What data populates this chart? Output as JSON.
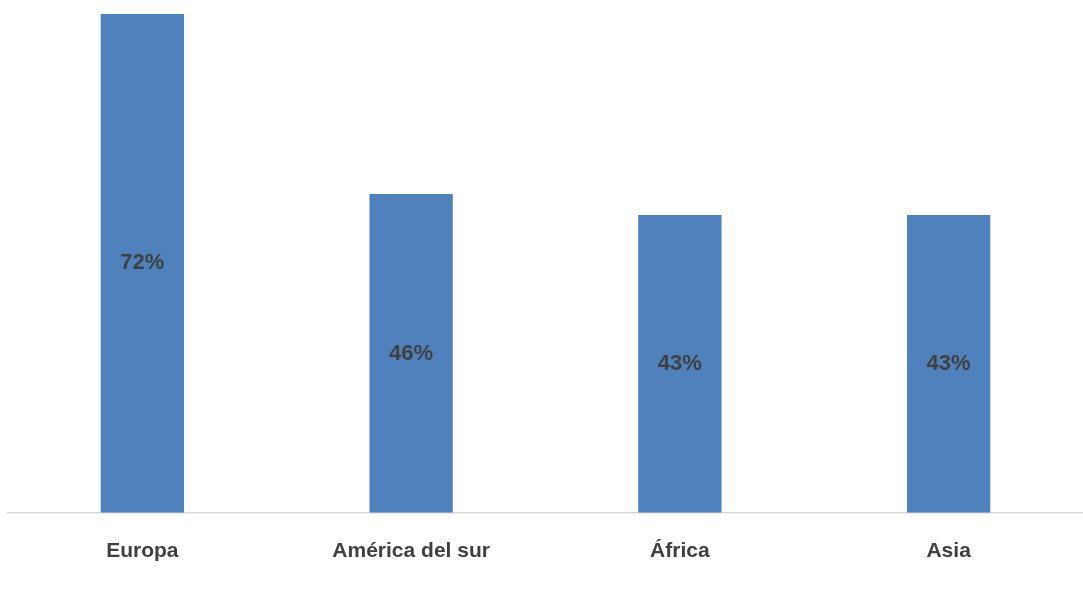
{
  "chart_data": {
    "type": "bar",
    "categories": [
      "Europa",
      "América del sur",
      "África",
      "Asia"
    ],
    "values": [
      72,
      46,
      43,
      43
    ],
    "color": "#4f81bd",
    "value_labels": [
      "72%",
      "46%",
      "43%",
      "43%"
    ],
    "grid": false,
    "legend": false
  }
}
